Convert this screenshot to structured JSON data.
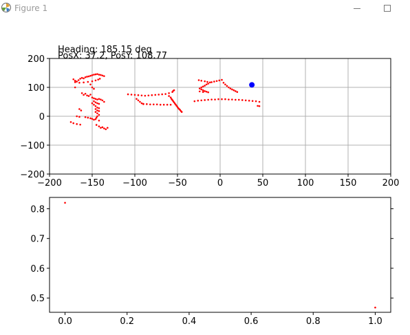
{
  "window": {
    "title": "Figure 1",
    "app_icon": "matplotlib-icon",
    "minimize_icon": "minimize-icon",
    "maximize_icon": "maximize-icon"
  },
  "readouts": {
    "heading": "Heading: 185.15 deg",
    "position": "PosX: 37.2, PosY: 108.77"
  },
  "colors": {
    "scan_points": "#ff0000",
    "robot_marker": "#0000ff",
    "grid": "#b0b0b0"
  },
  "chart_data": [
    {
      "type": "scatter",
      "grid": true,
      "xlim": [
        -200,
        200
      ],
      "ylim": [
        -200,
        200
      ],
      "xticks": [
        -200,
        -150,
        -100,
        -50,
        0,
        50,
        100,
        150,
        200
      ],
      "yticks": [
        -200,
        -100,
        0,
        100,
        200
      ],
      "xtick_labels": [
        "−200",
        "−150",
        "−100",
        "−50",
        "0",
        "50",
        "100",
        "150",
        "200"
      ],
      "ytick_labels": [
        "−200",
        "−100",
        "0",
        "100",
        "200"
      ],
      "series": [
        {
          "color": "#ff0000",
          "points": [
            [
              -172,
              128
            ],
            [
              -170,
              123
            ],
            [
              -168,
              120
            ],
            [
              -166,
              125
            ],
            [
              -164,
              130
            ],
            [
              -162,
              133
            ],
            [
              -160,
              131
            ],
            [
              -158,
              135
            ],
            [
              -156,
              137
            ],
            [
              -154,
              138
            ],
            [
              -152,
              140
            ],
            [
              -150,
              142
            ],
            [
              -148,
              144
            ],
            [
              -146,
              145
            ],
            [
              -144,
              146
            ],
            [
              -142,
              144
            ],
            [
              -140,
              143
            ],
            [
              -138,
              141
            ],
            [
              -136,
              139
            ],
            [
              -170,
              118
            ],
            [
              -165,
              116
            ],
            [
              -160,
              117
            ],
            [
              -155,
              119
            ],
            [
              -150,
              121
            ],
            [
              -146,
              124
            ],
            [
              -143,
              127
            ],
            [
              -141,
              130
            ],
            [
              -170,
              100
            ],
            [
              -152,
              110
            ],
            [
              -150,
              100
            ],
            [
              -148,
              95
            ],
            [
              -162,
              80
            ],
            [
              -158,
              78
            ],
            [
              -160,
              74
            ],
            [
              -156,
              72
            ],
            [
              -154,
              70
            ],
            [
              -152,
              75
            ],
            [
              -150,
              65
            ],
            [
              -148,
              62
            ],
            [
              -146,
              60
            ],
            [
              -144,
              58
            ],
            [
              -142,
              60
            ],
            [
              -140,
              58
            ],
            [
              -138,
              55
            ],
            [
              -136,
              50
            ],
            [
              -148,
              52
            ],
            [
              -146,
              48
            ],
            [
              -144,
              45
            ],
            [
              -142,
              43
            ],
            [
              -150,
              45
            ],
            [
              -148,
              40
            ],
            [
              -146,
              35
            ],
            [
              -144,
              30
            ],
            [
              -142,
              28
            ],
            [
              -146,
              25
            ],
            [
              -144,
              20
            ],
            [
              -142,
              18
            ],
            [
              -146,
              15
            ],
            [
              -144,
              10
            ],
            [
              -142,
              5
            ],
            [
              -144,
              0
            ],
            [
              -145,
              -5
            ],
            [
              -146,
              -10
            ],
            [
              -142,
              -15
            ],
            [
              -165,
              25
            ],
            [
              -163,
              20
            ],
            [
              -168,
              0
            ],
            [
              -165,
              -2
            ],
            [
              -158,
              -3
            ],
            [
              -155,
              -5
            ],
            [
              -152,
              -7
            ],
            [
              -150,
              -9
            ],
            [
              -148,
              -12
            ],
            [
              -175,
              -20
            ],
            [
              -172,
              -24
            ],
            [
              -168,
              -27
            ],
            [
              -164,
              -29
            ],
            [
              -145,
              -30
            ],
            [
              -142,
              -35
            ],
            [
              -138,
              -38
            ],
            [
              -136,
              -42
            ],
            [
              -134,
              -45
            ],
            [
              -140,
              -40
            ],
            [
              -132,
              -40
            ],
            [
              -108,
              76
            ],
            [
              -104,
              75
            ],
            [
              -100,
              74
            ],
            [
              -96,
              73
            ],
            [
              -92,
              72
            ],
            [
              -88,
              71
            ],
            [
              -84,
              72
            ],
            [
              -80,
              73
            ],
            [
              -76,
              74
            ],
            [
              -72,
              75
            ],
            [
              -68,
              76
            ],
            [
              -64,
              77
            ],
            [
              -60,
              80
            ],
            [
              -56,
              84
            ],
            [
              -55,
              88
            ],
            [
              -54,
              90
            ],
            [
              -98,
              60
            ],
            [
              -96,
              55
            ],
            [
              -94,
              50
            ],
            [
              -92,
              45
            ],
            [
              -90,
              43
            ],
            [
              -90,
              42
            ],
            [
              -86,
              42
            ],
            [
              -82,
              41
            ],
            [
              -78,
              41
            ],
            [
              -74,
              41
            ],
            [
              -70,
              40
            ],
            [
              -66,
              40
            ],
            [
              -62,
              40
            ],
            [
              -58,
              40
            ],
            [
              -60,
              70
            ],
            [
              -58,
              65
            ],
            [
              -57,
              60
            ],
            [
              -56,
              56
            ],
            [
              -55,
              52
            ],
            [
              -54,
              48
            ],
            [
              -53,
              44
            ],
            [
              -52,
              40
            ],
            [
              -51,
              36
            ],
            [
              -50,
              32
            ],
            [
              -49,
              28
            ],
            [
              -48,
              25
            ],
            [
              -47,
              22
            ],
            [
              -46,
              18
            ],
            [
              -45,
              15
            ],
            [
              -30,
              52
            ],
            [
              -26,
              54
            ],
            [
              -22,
              55
            ],
            [
              -18,
              56
            ],
            [
              -14,
              57
            ],
            [
              -10,
              58
            ],
            [
              -6,
              58
            ],
            [
              -2,
              59
            ],
            [
              2,
              59
            ],
            [
              6,
              59
            ],
            [
              10,
              58
            ],
            [
              14,
              58
            ],
            [
              18,
              57
            ],
            [
              22,
              57
            ],
            [
              26,
              56
            ],
            [
              30,
              55
            ],
            [
              34,
              54
            ],
            [
              38,
              53
            ],
            [
              42,
              52
            ],
            [
              46,
              50
            ],
            [
              -25,
              125
            ],
            [
              -22,
              123
            ],
            [
              -18,
              121
            ],
            [
              -15,
              119
            ],
            [
              -12,
              117
            ],
            [
              -14,
              113
            ],
            [
              -16,
              110
            ],
            [
              -18,
              106
            ],
            [
              -20,
              103
            ],
            [
              -22,
              100
            ],
            [
              -24,
              96
            ],
            [
              -22,
              93
            ],
            [
              -20,
              90
            ],
            [
              -18,
              87
            ],
            [
              -16,
              85
            ],
            [
              -14,
              83
            ],
            [
              -24,
              86
            ],
            [
              -20,
              84
            ],
            [
              -10,
              118
            ],
            [
              -7,
              120
            ],
            [
              -4,
              122
            ],
            [
              -1,
              124
            ],
            [
              2,
              126
            ],
            [
              4,
              116
            ],
            [
              6,
              110
            ],
            [
              8,
              105
            ],
            [
              10,
              100
            ],
            [
              12,
              96
            ],
            [
              14,
              93
            ],
            [
              16,
              90
            ],
            [
              18,
              87
            ],
            [
              20,
              84
            ],
            [
              44,
              36
            ],
            [
              46,
              35
            ]
          ]
        },
        {
          "color": "#0000ff",
          "points": [
            [
              37.2,
              108.77
            ]
          ]
        }
      ]
    },
    {
      "type": "scatter",
      "grid": false,
      "xlim": [
        -0.05,
        1.05
      ],
      "ylim": [
        0.452,
        0.838
      ],
      "xticks": [
        0.0,
        0.2,
        0.4,
        0.6,
        0.8,
        1.0
      ],
      "yticks": [
        0.5,
        0.6,
        0.7,
        0.8
      ],
      "xtick_labels": [
        "0.0",
        "0.2",
        "0.4",
        "0.6",
        "0.8",
        "1.0"
      ],
      "ytick_labels": [
        "0.5",
        "0.6",
        "0.7",
        "0.8"
      ],
      "series": [
        {
          "color": "#ff0000",
          "points": [
            [
              0.0,
              0.82
            ],
            [
              1.0,
              0.468
            ]
          ]
        }
      ]
    }
  ]
}
